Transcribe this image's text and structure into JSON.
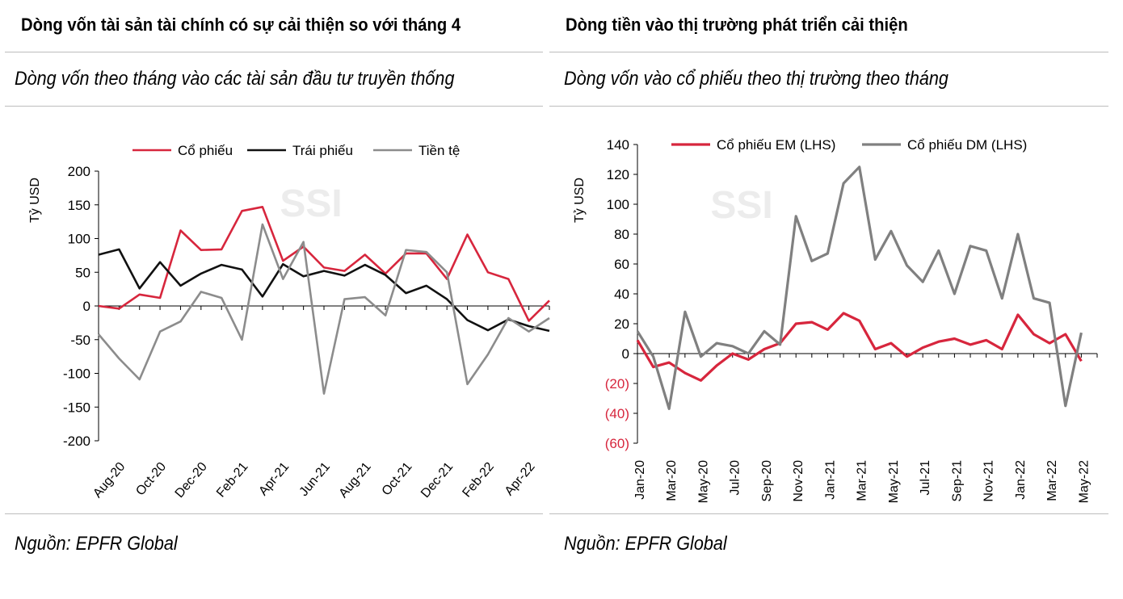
{
  "left": {
    "title": "Dòng vốn tài sản tài chính có sự cải thiện so với tháng 4",
    "subtitle": "Dòng vốn theo tháng vào các tài sản đầu tư truyền thống",
    "source": "Nguồn: EPFR Global",
    "watermark": "SSI"
  },
  "right": {
    "title": "Dòng tiền vào thị trường phát triển cải thiện",
    "subtitle": "Dòng vốn vào cổ phiếu theo thị trường theo tháng",
    "source": "Nguồn: EPFR Global",
    "watermark": "SSI"
  },
  "chart_data": [
    {
      "type": "line",
      "ylabel": "Tỷ USD",
      "ylim": [
        -200,
        200
      ],
      "yticks": [
        200,
        150,
        100,
        50,
        0,
        -50,
        -100,
        -150,
        -200
      ],
      "ytick_labels": [
        "200",
        "150",
        "100",
        "50",
        "0",
        "-50",
        "-100",
        "-150",
        "-200"
      ],
      "x": [
        "Jul-20",
        "Aug-20",
        "Sep-20",
        "Oct-20",
        "Nov-20",
        "Dec-20",
        "Jan-21",
        "Feb-21",
        "Mar-21",
        "Apr-21",
        "May-21",
        "Jun-21",
        "Jul-21",
        "Aug-21",
        "Sep-21",
        "Oct-21",
        "Nov-21",
        "Dec-21",
        "Jan-22",
        "Feb-22",
        "Mar-22",
        "Apr-22",
        "May-22"
      ],
      "xtick_labels": [
        "Aug-20",
        "Oct-20",
        "Dec-20",
        "Feb-21",
        "Apr-21",
        "Jun-21",
        "Aug-21",
        "Oct-21",
        "Dec-21",
        "Feb-22",
        "Apr-22"
      ],
      "legend_position": "top",
      "grid": false,
      "series": [
        {
          "name": "Cổ phiếu",
          "color": "#d7263d",
          "values": [
            0,
            -4,
            17,
            12,
            112,
            83,
            84,
            141,
            147,
            67,
            88,
            57,
            52,
            76,
            48,
            78,
            78,
            40,
            106,
            50,
            40,
            -22,
            8
          ]
        },
        {
          "name": "Trái phiếu",
          "color": "#111111",
          "values": [
            76,
            84,
            26,
            65,
            30,
            48,
            61,
            54,
            14,
            62,
            44,
            52,
            45,
            61,
            46,
            19,
            30,
            10,
            -21,
            -36,
            -20,
            -30,
            -37
          ]
        },
        {
          "name": "Tiền tệ",
          "color": "#8c8c8c",
          "values": [
            -42,
            -78,
            -109,
            -38,
            -23,
            21,
            12,
            -50,
            121,
            40,
            95,
            -130,
            10,
            13,
            -14,
            83,
            80,
            50,
            -116,
            -72,
            -18,
            -38,
            -18
          ]
        }
      ]
    },
    {
      "type": "line",
      "ylabel": "Tỷ USD",
      "ylim": [
        -60,
        140
      ],
      "yticks": [
        140,
        120,
        100,
        80,
        60,
        40,
        20,
        0,
        -20,
        -40,
        -60
      ],
      "ytick_labels": [
        "140",
        "120",
        "100",
        "80",
        "60",
        "40",
        "20",
        "0",
        "(20)",
        "(40)",
        "(60)"
      ],
      "negative_tick_color": "#d7263d",
      "x": [
        "Jan-20",
        "Feb-20",
        "Mar-20",
        "Apr-20",
        "May-20",
        "Jun-20",
        "Jul-20",
        "Aug-20",
        "Sep-20",
        "Oct-20",
        "Nov-20",
        "Dec-20",
        "Jan-21",
        "Feb-21",
        "Mar-21",
        "Apr-21",
        "May-21",
        "Jun-21",
        "Jul-21",
        "Aug-21",
        "Sep-21",
        "Oct-21",
        "Nov-21",
        "Dec-21",
        "Jan-22",
        "Feb-22",
        "Mar-22",
        "Apr-22",
        "May-22",
        "Jun-22"
      ],
      "xtick_labels": [
        "Jan-20",
        "Mar-20",
        "May-20",
        "Jul-20",
        "Sep-20",
        "Nov-20",
        "Jan-21",
        "Mar-21",
        "May-21",
        "Jul-21",
        "Sep-21",
        "Nov-21",
        "Jan-22",
        "Mar-22",
        "May-22"
      ],
      "legend_position": "top",
      "grid": false,
      "series": [
        {
          "name": "Cổ phiếu EM (LHS)",
          "color": "#d7263d",
          "values": [
            9,
            -9,
            -6,
            -13,
            -18,
            -8,
            0,
            -4,
            3,
            7,
            20,
            21,
            16,
            27,
            22,
            3,
            7,
            -2,
            4,
            8,
            10,
            6,
            9,
            3,
            26,
            13,
            7,
            13,
            -5,
            null
          ]
        },
        {
          "name": "Cổ phiếu DM (LHS)",
          "color": "#808080",
          "values": [
            15,
            -2,
            -37,
            28,
            -2,
            7,
            5,
            0,
            15,
            6,
            92,
            62,
            67,
            114,
            125,
            63,
            82,
            59,
            48,
            69,
            40,
            72,
            69,
            37,
            80,
            37,
            34,
            -35,
            14,
            null
          ]
        }
      ]
    }
  ]
}
